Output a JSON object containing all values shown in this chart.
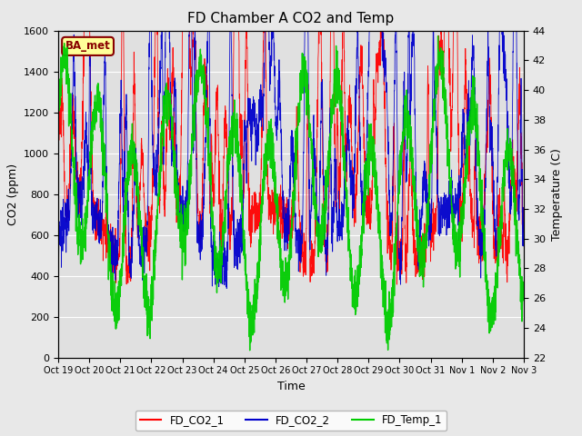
{
  "title": "FD Chamber A CO2 and Temp",
  "xlabel": "Time",
  "ylabel_left": "CO2 (ppm)",
  "ylabel_right": "Temperature (C)",
  "ylim_left": [
    0,
    1600
  ],
  "ylim_right": [
    22,
    44
  ],
  "yticks_left": [
    0,
    200,
    400,
    600,
    800,
    1000,
    1200,
    1400,
    1600
  ],
  "yticks_right": [
    22,
    24,
    26,
    28,
    30,
    32,
    34,
    36,
    38,
    40,
    42,
    44
  ],
  "xtick_labels": [
    "Oct 19",
    "Oct 20",
    "Oct 21",
    "Oct 22",
    "Oct 23",
    "Oct 24",
    "Oct 25",
    "Oct 26",
    "Oct 27",
    "Oct 28",
    "Oct 29",
    "Oct 30",
    "Oct 31",
    "Nov 1",
    "Nov 2",
    "Nov 3"
  ],
  "color_co2_1": "#FF0000",
  "color_co2_2": "#0000CC",
  "color_temp": "#00CC00",
  "legend_labels": [
    "FD_CO2_1",
    "FD_CO2_2",
    "FD_Temp_1"
  ],
  "annotation_text": "BA_met",
  "annotation_color": "#880000",
  "annotation_bg": "#FFFF99",
  "fig_facecolor": "#E8E8E8",
  "plot_facecolor": "#E0E0E0",
  "title_fontsize": 11,
  "axis_fontsize": 9,
  "tick_fontsize": 8
}
